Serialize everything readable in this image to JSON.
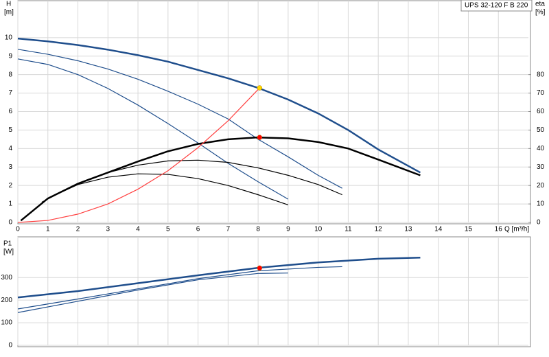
{
  "chart_data": [
    {
      "type": "line",
      "title": "UPS 32-120 F B 220",
      "y_label": "H",
      "y_unit": "[m]",
      "y2_label": "eta",
      "y2_unit": "[%]",
      "x_label": "Q [m³/h]",
      "xlim": [
        0,
        17
      ],
      "xticks": [
        0,
        1,
        2,
        3,
        4,
        5,
        6,
        7,
        8,
        9,
        10,
        11,
        12,
        13,
        14,
        15,
        16
      ],
      "ylim": [
        0,
        12
      ],
      "yticks": [
        0,
        1,
        2,
        3,
        4,
        5,
        6,
        7,
        8,
        9,
        10
      ],
      "y2lim": [
        0,
        120
      ],
      "y2ticks": [
        0,
        10,
        20,
        30,
        40,
        50,
        60,
        70,
        80
      ],
      "grid": true,
      "series": [
        {
          "color": "#1f4e8c",
          "bold": true,
          "x": [
            0,
            1,
            2,
            3,
            4,
            5,
            6,
            7,
            8,
            9,
            10,
            11,
            12,
            13.4
          ],
          "values": [
            9.95,
            9.8,
            9.6,
            9.35,
            9.05,
            8.7,
            8.25,
            7.8,
            7.28,
            6.65,
            5.9,
            5.0,
            3.95,
            2.7
          ]
        },
        {
          "color": "#1f4e8c",
          "bold": false,
          "x": [
            0,
            1,
            2,
            3,
            4,
            5,
            6,
            7,
            8,
            9,
            10,
            10.8
          ],
          "values": [
            9.37,
            9.1,
            8.75,
            8.3,
            7.75,
            7.1,
            6.4,
            5.6,
            4.5,
            3.55,
            2.55,
            1.85
          ]
        },
        {
          "color": "#1f4e8c",
          "bold": false,
          "x": [
            0,
            1,
            2,
            3,
            4,
            5,
            6,
            7,
            8,
            9
          ],
          "values": [
            8.85,
            8.55,
            8.0,
            7.25,
            6.35,
            5.35,
            4.3,
            3.2,
            2.2,
            1.26
          ]
        },
        {
          "color": "#000000",
          "bold": true,
          "axis": "y2",
          "x": [
            0.1,
            1,
            2,
            3,
            4,
            5,
            6,
            7,
            8,
            9,
            10,
            11,
            12,
            13.4
          ],
          "values": [
            1,
            13,
            21,
            27,
            33,
            38.5,
            42.5,
            45,
            46,
            45.5,
            43.5,
            40,
            34,
            25.5
          ]
        },
        {
          "color": "#000000",
          "bold": false,
          "axis": "y2",
          "x": [
            0.8,
            2,
            3,
            4,
            5,
            6,
            7,
            8,
            9,
            10,
            10.8
          ],
          "values": [
            11,
            21,
            27,
            31,
            33.3,
            33.7,
            32.5,
            29.5,
            25.5,
            20.5,
            15
          ]
        },
        {
          "color": "#000000",
          "bold": false,
          "axis": "y2",
          "x": [
            1,
            2,
            3,
            4,
            5,
            6,
            7,
            8,
            9
          ],
          "values": [
            13,
            20.5,
            24.5,
            26.3,
            26,
            23.7,
            20,
            15,
            9.5
          ]
        },
        {
          "color": "#ff4040",
          "bold": false,
          "x": [
            0,
            1,
            2,
            3,
            4,
            5,
            6,
            7,
            8.05
          ],
          "values": [
            0,
            0.11,
            0.45,
            1.0,
            1.8,
            2.8,
            4.05,
            5.5,
            7.28
          ]
        }
      ],
      "points": [
        {
          "x": 8.05,
          "value": 7.28,
          "color": "#ffd700"
        },
        {
          "x": 8.05,
          "value": 46,
          "axis": "y2",
          "color": "#ff0000"
        }
      ]
    },
    {
      "type": "line",
      "y_label": "P1",
      "y_unit": "[W]",
      "xlim": [
        0,
        17
      ],
      "xgrid": [
        0,
        1,
        2,
        3,
        4,
        5,
        6,
        7,
        8,
        9,
        10,
        11,
        12,
        13,
        14,
        15,
        16
      ],
      "ylim": [
        0,
        480
      ],
      "yticks": [
        0,
        100,
        200,
        300
      ],
      "grid": true,
      "series": [
        {
          "color": "#1f4e8c",
          "bold": true,
          "x": [
            0,
            2,
            4,
            6,
            8,
            10,
            12,
            13.4
          ],
          "values": [
            212,
            240,
            275,
            310,
            343,
            367,
            383,
            388
          ]
        },
        {
          "color": "#1f4e8c",
          "bold": false,
          "x": [
            0,
            2,
            4,
            6,
            8,
            10,
            10.8
          ],
          "values": [
            161,
            205,
            250,
            295,
            330,
            345,
            348
          ]
        },
        {
          "color": "#1f4e8c",
          "bold": false,
          "x": [
            0,
            2,
            4,
            6,
            8,
            9
          ],
          "values": [
            145,
            195,
            245,
            290,
            318,
            320
          ]
        }
      ],
      "points": [
        {
          "x": 8.05,
          "value": 342,
          "color": "#ff0000"
        }
      ]
    }
  ]
}
